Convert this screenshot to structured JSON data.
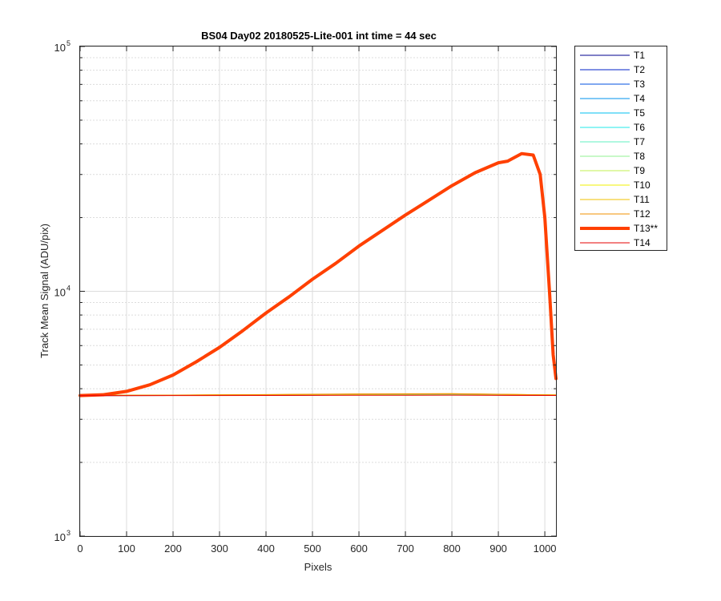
{
  "chart_data": {
    "type": "line",
    "title": "BS04 Day02 20180525-Lite-001 int time = 44 sec",
    "xlabel": "Pixels",
    "ylabel": "Track Mean Signal (ADU/pix)",
    "xlim": [
      0,
      1024
    ],
    "ylim": [
      1000,
      100000
    ],
    "yscale": "log",
    "xticks": [
      0,
      100,
      200,
      300,
      400,
      500,
      600,
      700,
      800,
      900,
      1000
    ],
    "xtick_labels": [
      "0",
      "100",
      "200",
      "300",
      "400",
      "500",
      "600",
      "700",
      "800",
      "900",
      "1000"
    ],
    "ytick_labels": [
      {
        "base": "10",
        "exp": "3",
        "value": 1000
      },
      {
        "base": "10",
        "exp": "4",
        "value": 10000
      },
      {
        "base": "10",
        "exp": "5",
        "value": 100000
      }
    ],
    "grid": true,
    "legend_position": "outside-right",
    "series": [
      {
        "name": "T1",
        "color": "#00008f",
        "width": 1,
        "x": [
          0,
          200,
          400,
          600,
          800,
          1024
        ],
        "values": [
          3750,
          3755,
          3760,
          3770,
          3775,
          3760
        ]
      },
      {
        "name": "T2",
        "color": "#0020c8",
        "width": 1,
        "x": [
          0,
          200,
          400,
          600,
          800,
          1024
        ],
        "values": [
          3750,
          3755,
          3762,
          3772,
          3778,
          3762
        ]
      },
      {
        "name": "T3",
        "color": "#0050e0",
        "width": 1,
        "x": [
          0,
          200,
          400,
          600,
          800,
          1024
        ],
        "values": [
          3752,
          3757,
          3764,
          3775,
          3780,
          3763
        ]
      },
      {
        "name": "T4",
        "color": "#0090ee",
        "width": 1,
        "x": [
          0,
          200,
          400,
          600,
          800,
          1024
        ],
        "values": [
          3752,
          3758,
          3766,
          3778,
          3784,
          3764
        ]
      },
      {
        "name": "T5",
        "color": "#00c0f0",
        "width": 1,
        "x": [
          0,
          200,
          400,
          600,
          800,
          1024
        ],
        "values": [
          3753,
          3759,
          3768,
          3781,
          3788,
          3765
        ]
      },
      {
        "name": "T6",
        "color": "#20e8e8",
        "width": 1,
        "x": [
          0,
          200,
          400,
          600,
          800,
          1024
        ],
        "values": [
          3753,
          3760,
          3770,
          3785,
          3792,
          3766
        ]
      },
      {
        "name": "T7",
        "color": "#60f0c0",
        "width": 1,
        "x": [
          0,
          200,
          400,
          600,
          800,
          1024
        ],
        "values": [
          3754,
          3761,
          3772,
          3788,
          3796,
          3767
        ]
      },
      {
        "name": "T8",
        "color": "#90f090",
        "width": 1,
        "x": [
          0,
          200,
          400,
          600,
          800,
          1024
        ],
        "values": [
          3754,
          3762,
          3774,
          3792,
          3800,
          3768
        ]
      },
      {
        "name": "T9",
        "color": "#c0f050",
        "width": 1,
        "x": [
          0,
          200,
          400,
          600,
          800,
          1024
        ],
        "values": [
          3755,
          3763,
          3776,
          3795,
          3805,
          3769
        ]
      },
      {
        "name": "T10",
        "color": "#f0f000",
        "width": 1,
        "x": [
          0,
          200,
          400,
          600,
          800,
          1024
        ],
        "values": [
          3755,
          3764,
          3778,
          3798,
          3810,
          3770
        ]
      },
      {
        "name": "T11",
        "color": "#f0c000",
        "width": 1,
        "x": [
          0,
          200,
          400,
          600,
          800,
          1024
        ],
        "values": [
          3756,
          3766,
          3781,
          3803,
          3815,
          3771
        ]
      },
      {
        "name": "T12",
        "color": "#f09000",
        "width": 1,
        "x": [
          0,
          200,
          400,
          600,
          800,
          1024
        ],
        "values": [
          3756,
          3767,
          3784,
          3808,
          3820,
          3772
        ]
      },
      {
        "name": "T13**",
        "color": "#ff4000",
        "width": 4,
        "x": [
          0,
          50,
          100,
          150,
          200,
          250,
          300,
          350,
          400,
          450,
          500,
          550,
          600,
          650,
          700,
          750,
          800,
          850,
          900,
          920,
          950,
          975,
          990,
          1000,
          1010,
          1018,
          1024
        ],
        "values": [
          3750,
          3780,
          3900,
          4150,
          4550,
          5150,
          5900,
          6900,
          8150,
          9500,
          11200,
          13000,
          15300,
          17700,
          20500,
          23500,
          27000,
          30500,
          33500,
          34000,
          36500,
          36000,
          30000,
          20000,
          10000,
          5500,
          4400
        ]
      },
      {
        "name": "T14",
        "color": "#e60000",
        "width": 1,
        "x": [
          0,
          200,
          400,
          600,
          800,
          1024
        ],
        "values": [
          3745,
          3750,
          3755,
          3760,
          3765,
          3755
        ]
      }
    ]
  }
}
